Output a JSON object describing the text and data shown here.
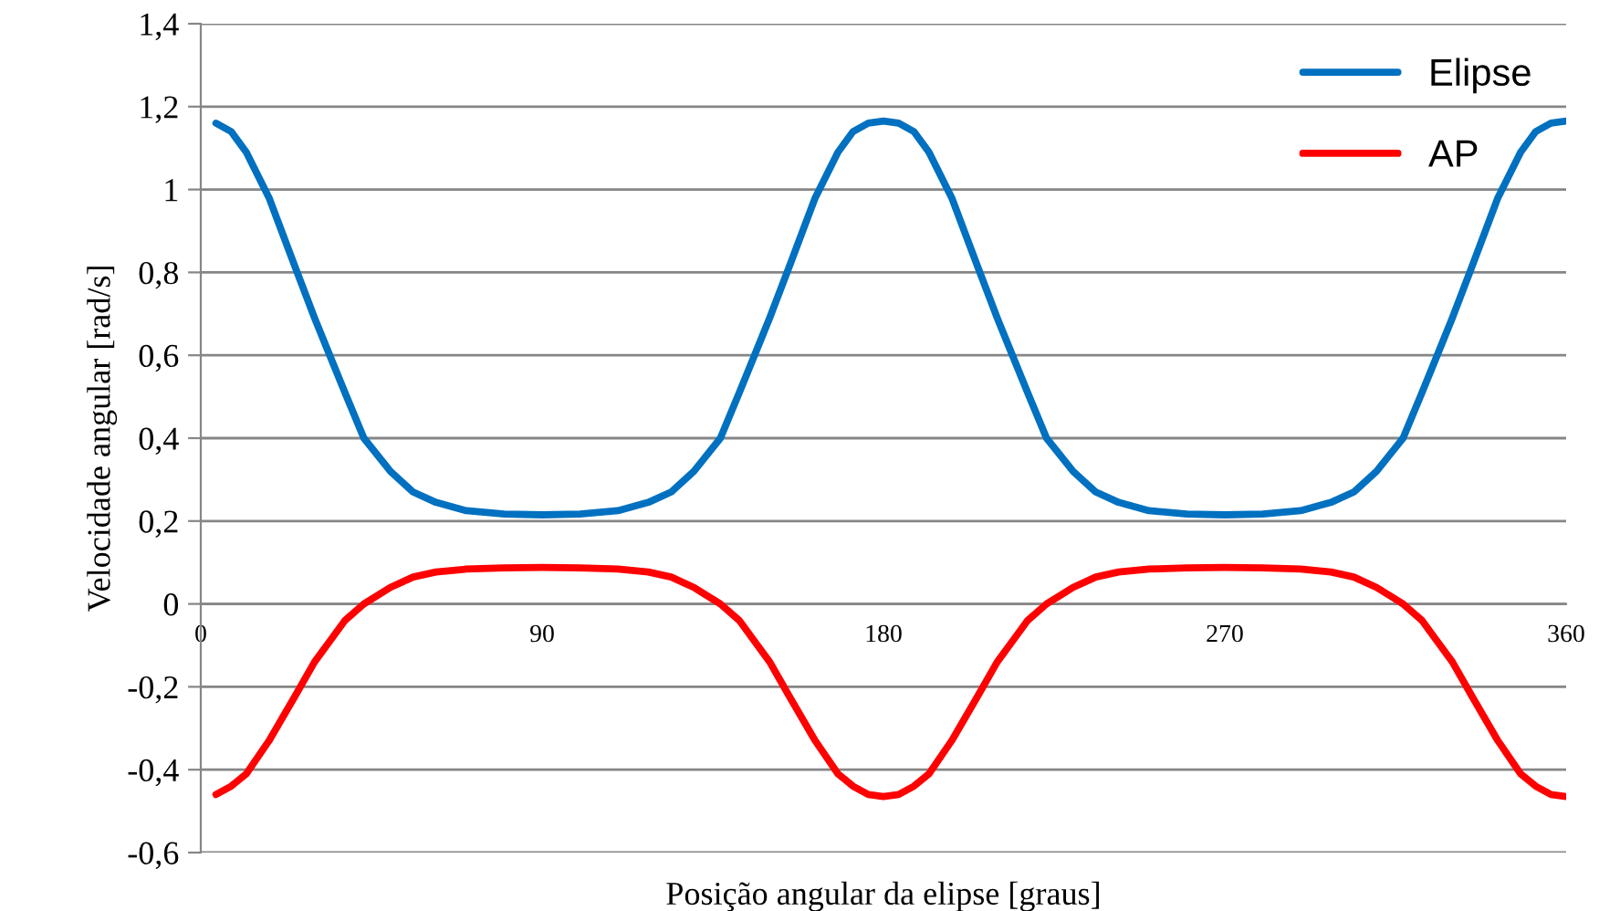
{
  "chart_data": {
    "type": "line",
    "xlabel": "Posição angular da elipse [graus]",
    "ylabel": "Velocidade angular [rad/s]",
    "x": [
      4,
      8,
      12,
      18,
      25,
      30,
      34,
      38,
      43,
      50,
      56,
      62,
      70,
      80,
      90,
      100,
      110,
      118,
      124,
      130,
      137,
      142,
      146,
      150,
      155,
      162,
      168,
      172,
      176,
      180,
      184,
      188,
      192,
      198,
      205,
      210,
      214,
      218,
      223,
      230,
      236,
      242,
      250,
      260,
      270,
      280,
      290,
      298,
      304,
      310,
      317,
      322,
      326,
      330,
      335,
      342,
      348,
      352,
      356,
      360
    ],
    "series": [
      {
        "name": "Elipse",
        "color": "#0070c0",
        "values": [
          1.16,
          1.14,
          1.09,
          0.98,
          0.81,
          0.69,
          0.6,
          0.51,
          0.4,
          0.32,
          0.27,
          0.245,
          0.225,
          0.217,
          0.215,
          0.217,
          0.225,
          0.245,
          0.27,
          0.32,
          0.4,
          0.51,
          0.6,
          0.69,
          0.81,
          0.98,
          1.09,
          1.14,
          1.16,
          1.165,
          1.16,
          1.14,
          1.09,
          0.98,
          0.81,
          0.69,
          0.6,
          0.51,
          0.4,
          0.32,
          0.27,
          0.245,
          0.225,
          0.217,
          0.215,
          0.217,
          0.225,
          0.245,
          0.27,
          0.32,
          0.4,
          0.51,
          0.6,
          0.69,
          0.81,
          0.98,
          1.09,
          1.14,
          1.16,
          1.165
        ]
      },
      {
        "name": "AP",
        "color": "#ff0000",
        "values": [
          -0.46,
          -0.44,
          -0.41,
          -0.33,
          -0.22,
          -0.14,
          -0.09,
          -0.04,
          0,
          0.04,
          0.065,
          0.077,
          0.084,
          0.087,
          0.088,
          0.087,
          0.084,
          0.077,
          0.065,
          0.04,
          0,
          -0.04,
          -0.09,
          -0.14,
          -0.22,
          -0.33,
          -0.41,
          -0.44,
          -0.46,
          -0.465,
          -0.46,
          -0.44,
          -0.41,
          -0.33,
          -0.22,
          -0.14,
          -0.09,
          -0.04,
          0,
          0.04,
          0.065,
          0.077,
          0.084,
          0.087,
          0.088,
          0.087,
          0.084,
          0.077,
          0.065,
          0.04,
          0,
          -0.04,
          -0.09,
          -0.14,
          -0.22,
          -0.33,
          -0.41,
          -0.44,
          -0.46,
          -0.465
        ]
      }
    ],
    "xlim": [
      0,
      360
    ],
    "xticks": [
      0,
      90,
      180,
      270,
      360
    ],
    "ylim": [
      -0.6,
      1.4
    ],
    "yticks": [
      {
        "value": -0.6,
        "label": "-0,6"
      },
      {
        "value": -0.4,
        "label": "-0,4"
      },
      {
        "value": -0.2,
        "label": "-0,2"
      },
      0,
      {
        "value": 0.2,
        "label": "0,2"
      },
      {
        "value": 0.4,
        "label": "0,4"
      },
      {
        "value": 0.6,
        "label": "0,6"
      },
      {
        "value": 0.8,
        "label": "0,8"
      },
      1,
      {
        "value": 1.2,
        "label": "1,2"
      },
      {
        "value": 1.4,
        "label": "1,4"
      }
    ],
    "grid": "y",
    "legend": "top right",
    "marker": "none",
    "line_style": "solid"
  }
}
